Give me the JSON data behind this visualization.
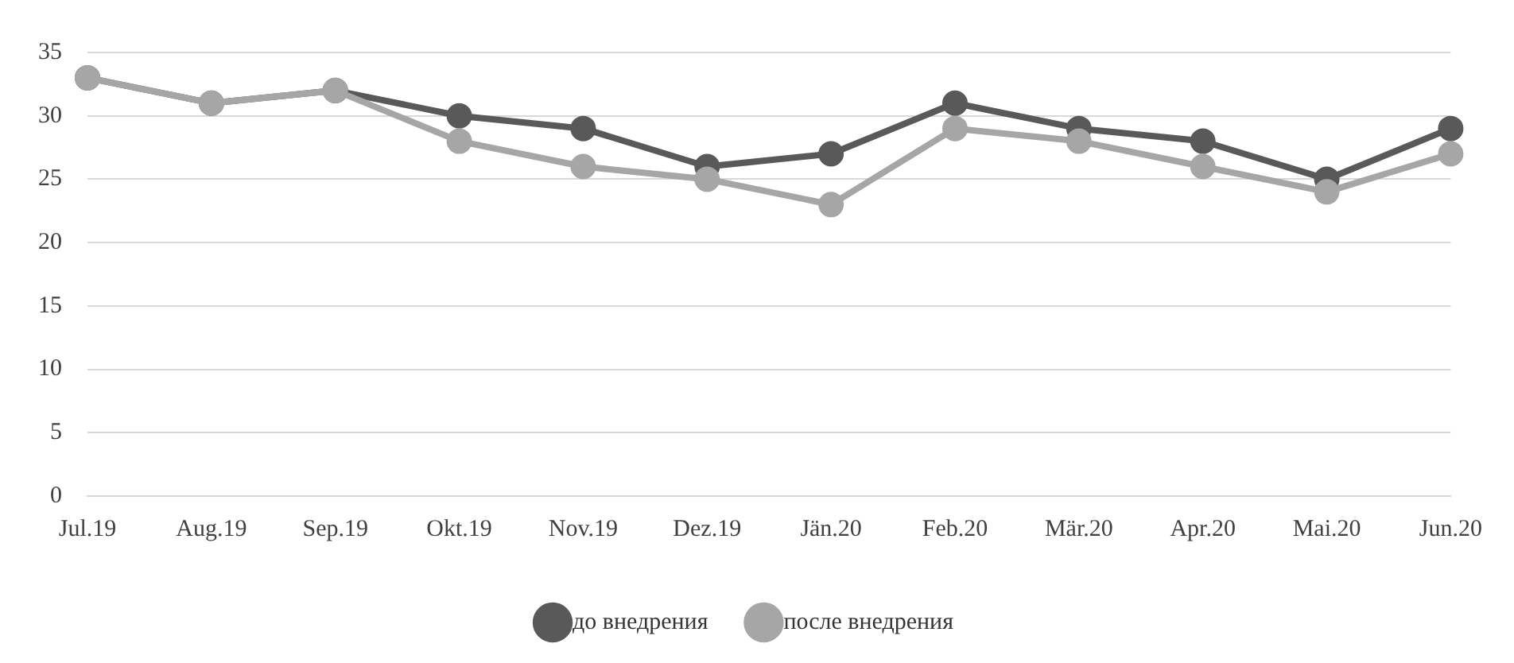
{
  "chart_data": {
    "type": "line",
    "categories": [
      "Jul.19",
      "Aug.19",
      "Sep.19",
      "Okt.19",
      "Nov.19",
      "Dez.19",
      "Jän.20",
      "Feb.20",
      "Mär.20",
      "Apr.20",
      "Mai.20",
      "Jun.20"
    ],
    "series": [
      {
        "name": "до внедрения",
        "color": "#595959",
        "values": [
          33,
          31,
          32,
          30,
          29,
          26,
          27,
          31,
          29,
          28,
          25,
          29
        ]
      },
      {
        "name": "после внедрения",
        "color": "#a6a6a6",
        "values": [
          33,
          31,
          32,
          28,
          26,
          25,
          23,
          29,
          28,
          26,
          24,
          27
        ]
      }
    ],
    "ylim": [
      0,
      35
    ],
    "yticks": [
      0,
      5,
      10,
      15,
      20,
      25,
      30,
      35
    ],
    "grid": "y",
    "legend": "bottom",
    "marker": "circle",
    "line_style": "solid"
  }
}
